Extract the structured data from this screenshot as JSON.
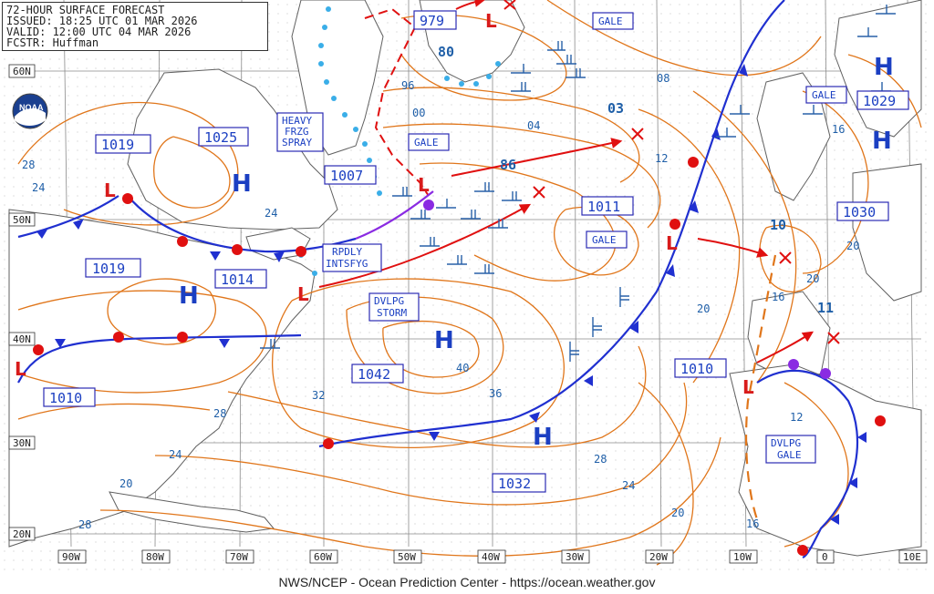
{
  "header": {
    "title": "72-HOUR SURFACE FORECAST",
    "issued": "ISSUED: 18:25 UTC 01 MAR 2026",
    "valid": "VALID:  12:00 UTC 04 MAR 2026",
    "forecaster": "FCSTR:  Huffman"
  },
  "footer": "NWS/NCEP - Ocean Prediction Center - https://ocean.weather.gov",
  "logo_text": "NOAA",
  "colors": {
    "isobar": "#e0761b",
    "label_text": "#1f5fa8",
    "pressure_center": "#1b3fc2",
    "low_marker": "#d81b1b",
    "cold_front": "#2030d0",
    "warm_front": "#e01010",
    "occluded_front": "#8a2be2",
    "ice": "#3aaee8",
    "wind_barb": "#2860a8",
    "land": "#606060",
    "grid": "#8a8a8a"
  },
  "latitude_labels": [
    "60N",
    "50N",
    "40N",
    "30N",
    "20N"
  ],
  "longitude_labels": [
    "90W",
    "80W",
    "70W",
    "60W",
    "50W",
    "40W",
    "30W",
    "20W",
    "10W",
    "0",
    "10E"
  ],
  "highs": [
    {
      "symbol": "H",
      "pressure": "1025"
    },
    {
      "symbol": "H",
      "pressure": "1019"
    },
    {
      "symbol": "H",
      "pressure": "1042"
    },
    {
      "symbol": "H",
      "pressure": "1032"
    },
    {
      "symbol": "H",
      "pressure": "1029"
    },
    {
      "symbol": "H",
      "pressure": "1030"
    }
  ],
  "lows": [
    {
      "pressure": "979"
    },
    {
      "pressure": "1007"
    },
    {
      "pressure": "1014"
    },
    {
      "pressure": "1010"
    },
    {
      "pressure": "1011"
    },
    {
      "pressure": "1010"
    }
  ],
  "isobar_labels": [
    "1019",
    "80",
    "96",
    "00",
    "04",
    "08",
    "12",
    "03",
    "86",
    "28",
    "24",
    "24",
    "20",
    "16",
    "20",
    "10",
    "11",
    "16",
    "12",
    "40",
    "36",
    "32",
    "28",
    "24",
    "20",
    "28",
    "24",
    "20",
    "16",
    "28",
    "20"
  ],
  "warnings": [
    "GALE",
    "GALE",
    "GALE",
    "GALE",
    "HEAVY",
    "FRZG",
    "SPRAY",
    "RPDLY",
    "INTSFYG",
    "DVLPG",
    "STORM",
    "DVLPG",
    "GALE"
  ]
}
